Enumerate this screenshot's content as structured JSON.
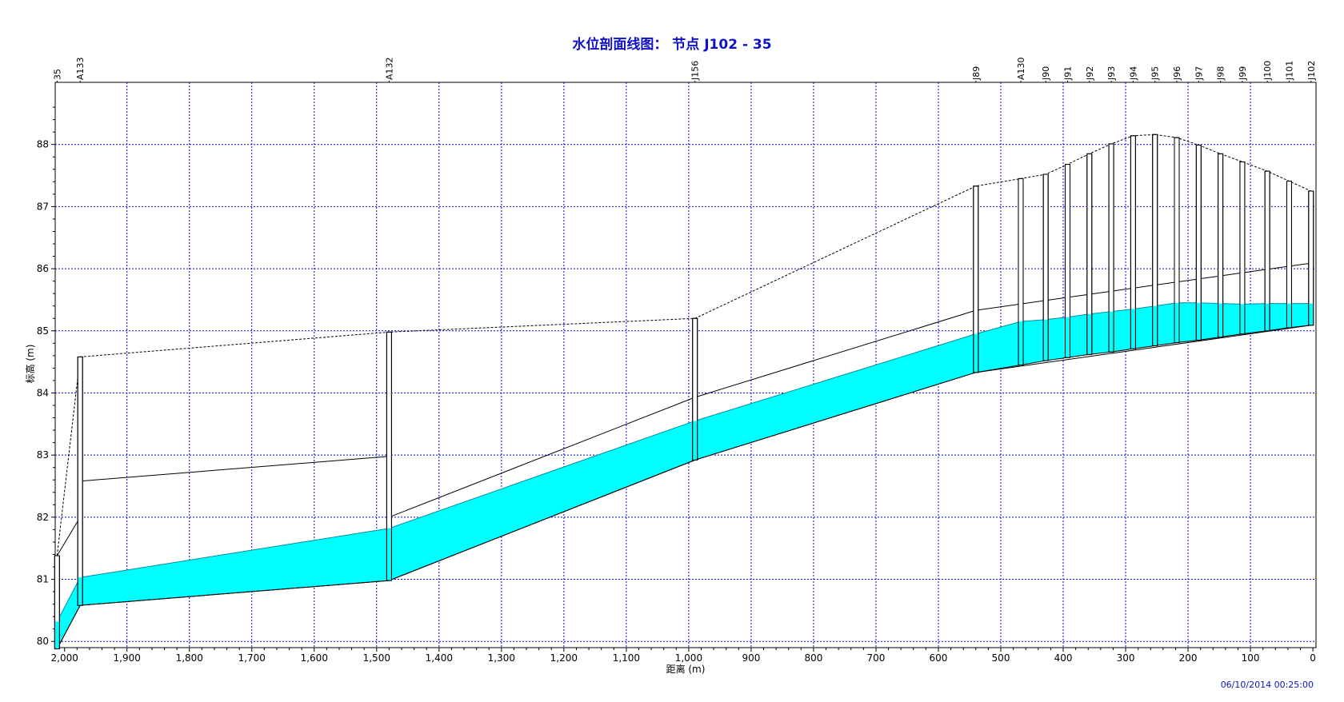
{
  "chart_data": {
    "type": "area",
    "title": "水位剖面线图： 节点 J102 - 35",
    "xlabel": "距离 (m)",
    "ylabel": "标高 (m)",
    "xlim": [
      2000,
      0
    ],
    "ylim": [
      79.9,
      89.0
    ],
    "x_reversed": true,
    "x_ticks": [
      2000,
      1900,
      1800,
      1700,
      1600,
      1500,
      1400,
      1300,
      1200,
      1100,
      1000,
      900,
      800,
      700,
      600,
      500,
      400,
      300,
      200,
      100,
      0
    ],
    "x_tick_labels": [
      "2,000",
      "1,900",
      "1,800",
      "1,700",
      "1,600",
      "1,500",
      "1,400",
      "1,300",
      "1,200",
      "1,100",
      "1,000",
      "900",
      "800",
      "700",
      "600",
      "500",
      "400",
      "300",
      "200",
      "100",
      "0"
    ],
    "y_ticks": [
      80,
      81,
      82,
      83,
      84,
      85,
      86,
      87,
      88
    ],
    "y_tick_labels": [
      "80",
      "81",
      "82",
      "83",
      "84",
      "85",
      "86",
      "87",
      "88"
    ],
    "grid": true,
    "timestamp": "06/10/2014 00:25:00",
    "nodes": [
      {
        "name": "35",
        "x": 2012,
        "invert": 79.88,
        "ground": 81.38,
        "water": 80.32
      },
      {
        "name": "A133",
        "x": 1975,
        "invert": 80.58,
        "ground": 84.58,
        "water": 81.03
      },
      {
        "name": "A132",
        "x": 1480,
        "invert": 80.98,
        "ground": 84.98,
        "water": 81.82
      },
      {
        "name": "J156",
        "x": 990,
        "invert": 82.92,
        "ground": 85.2,
        "water": 83.55
      },
      {
        "name": "J89",
        "x": 540,
        "invert": 84.33,
        "ground": 87.33,
        "water": 84.95
      },
      {
        "name": "A130",
        "x": 468,
        "invert": 84.45,
        "ground": 87.45,
        "water": 85.15
      },
      {
        "name": "J90",
        "x": 428,
        "invert": 84.52,
        "ground": 87.52,
        "water": 85.18
      },
      {
        "name": "J91",
        "x": 393,
        "invert": 84.57,
        "ground": 87.68,
        "water": 85.22
      },
      {
        "name": "J92",
        "x": 358,
        "invert": 84.62,
        "ground": 87.85,
        "water": 85.27
      },
      {
        "name": "J93",
        "x": 323,
        "invert": 84.66,
        "ground": 88.01,
        "water": 85.31
      },
      {
        "name": "J94",
        "x": 288,
        "invert": 84.71,
        "ground": 88.14,
        "water": 85.35
      },
      {
        "name": "J95",
        "x": 253,
        "invert": 84.76,
        "ground": 88.16,
        "water": 85.4
      },
      {
        "name": "J96",
        "x": 218,
        "invert": 84.81,
        "ground": 88.11,
        "water": 85.45
      },
      {
        "name": "J97",
        "x": 183,
        "invert": 84.85,
        "ground": 87.99,
        "water": 85.45
      },
      {
        "name": "J98",
        "x": 148,
        "invert": 84.9,
        "ground": 87.85,
        "water": 85.44
      },
      {
        "name": "J99",
        "x": 113,
        "invert": 84.95,
        "ground": 87.72,
        "water": 85.43
      },
      {
        "name": "J100",
        "x": 73,
        "invert": 85.0,
        "ground": 87.57,
        "water": 85.44
      },
      {
        "name": "J101",
        "x": 38,
        "invert": 85.05,
        "ground": 87.41,
        "water": 85.44
      },
      {
        "name": "J102",
        "x": 3,
        "invert": 85.09,
        "ground": 87.25,
        "water": 85.44
      }
    ],
    "pipes": [
      {
        "from": "35",
        "to": "A133",
        "up_invert": 79.88,
        "dn_invert": 80.58,
        "up_crown": 81.38,
        "dn_crown": 82.0
      },
      {
        "from": "A133",
        "to": "A132",
        "up_invert": 80.58,
        "dn_invert": 80.98,
        "up_crown": 82.58,
        "dn_crown": 82.98
      },
      {
        "from": "A132",
        "to": "J156",
        "up_invert": 80.98,
        "dn_invert": 82.92,
        "up_crown": 82.0,
        "dn_crown": 83.93
      },
      {
        "from": "J156",
        "to": "J89",
        "up_invert": 82.92,
        "dn_invert": 84.33,
        "up_crown": 83.93,
        "dn_crown": 85.33
      },
      {
        "from": "J89",
        "to": "J102",
        "up_invert": 84.33,
        "dn_invert": 85.09,
        "up_crown": 85.33,
        "dn_crown": 86.09
      }
    ],
    "colors": {
      "water": "#00ffff",
      "grid": "#0000ff",
      "title": "#1010c8",
      "timestamp": "#1010c8"
    }
  }
}
